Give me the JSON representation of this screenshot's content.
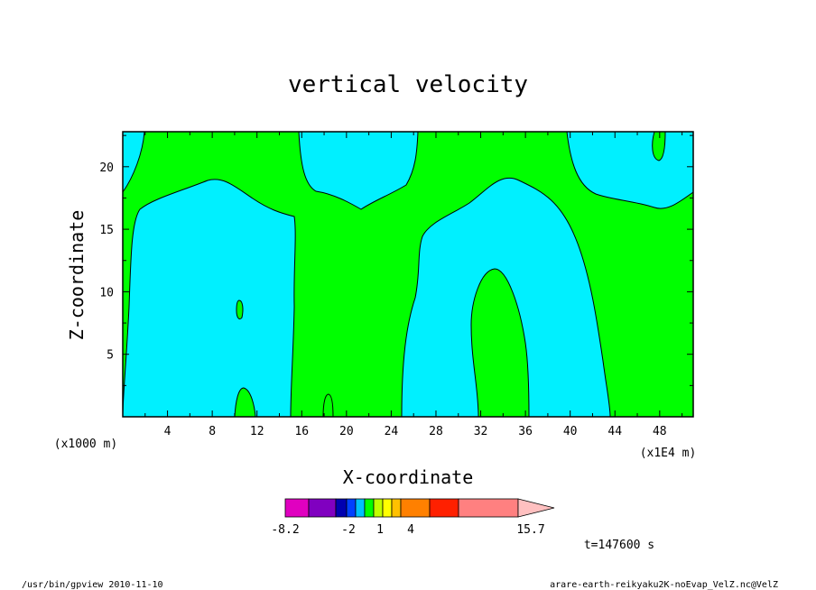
{
  "chart_data": {
    "type": "heatmap",
    "title": "vertical velocity",
    "xlabel": "X-coordinate",
    "ylabel": "Z-coordinate",
    "x_scale_note": "(x1E4 m)",
    "y_scale_note": "(x1000 m)",
    "xlim": [
      0,
      51
    ],
    "ylim": [
      0,
      22.8
    ],
    "x_ticks": [
      4,
      8,
      12,
      16,
      20,
      24,
      28,
      32,
      36,
      40,
      44,
      48
    ],
    "y_ticks": [
      5,
      10,
      15,
      20
    ],
    "time_label": "t=147600 s",
    "colorbar": {
      "colors": [
        "#e000c0",
        "#8000c0",
        "#0000b0",
        "#0040ff",
        "#00c0ff",
        "#00ff00",
        "#c0ff00",
        "#ffff00",
        "#ffc000",
        "#ff8000",
        "#ff2000",
        "#ff8080",
        "#ffc0c0"
      ],
      "boundaries": [
        -8.2,
        -6,
        -3,
        -2,
        -1,
        0,
        1,
        2,
        3,
        4,
        7,
        10,
        15.7
      ],
      "tick_labels": [
        "-8.2",
        "-2",
        "1",
        "4",
        "15.7"
      ],
      "tick_values": [
        -8.2,
        -2,
        1,
        4,
        15.7
      ]
    },
    "regions": [
      {
        "name": "green",
        "color": "#00ff00"
      },
      {
        "name": "cyan",
        "color": "#00f0ff"
      }
    ]
  },
  "footer": {
    "left": "/usr/bin/gpview   2010-11-10",
    "right": "arare-earth-reikyaku2K-noEvap_VelZ.nc@VelZ"
  }
}
